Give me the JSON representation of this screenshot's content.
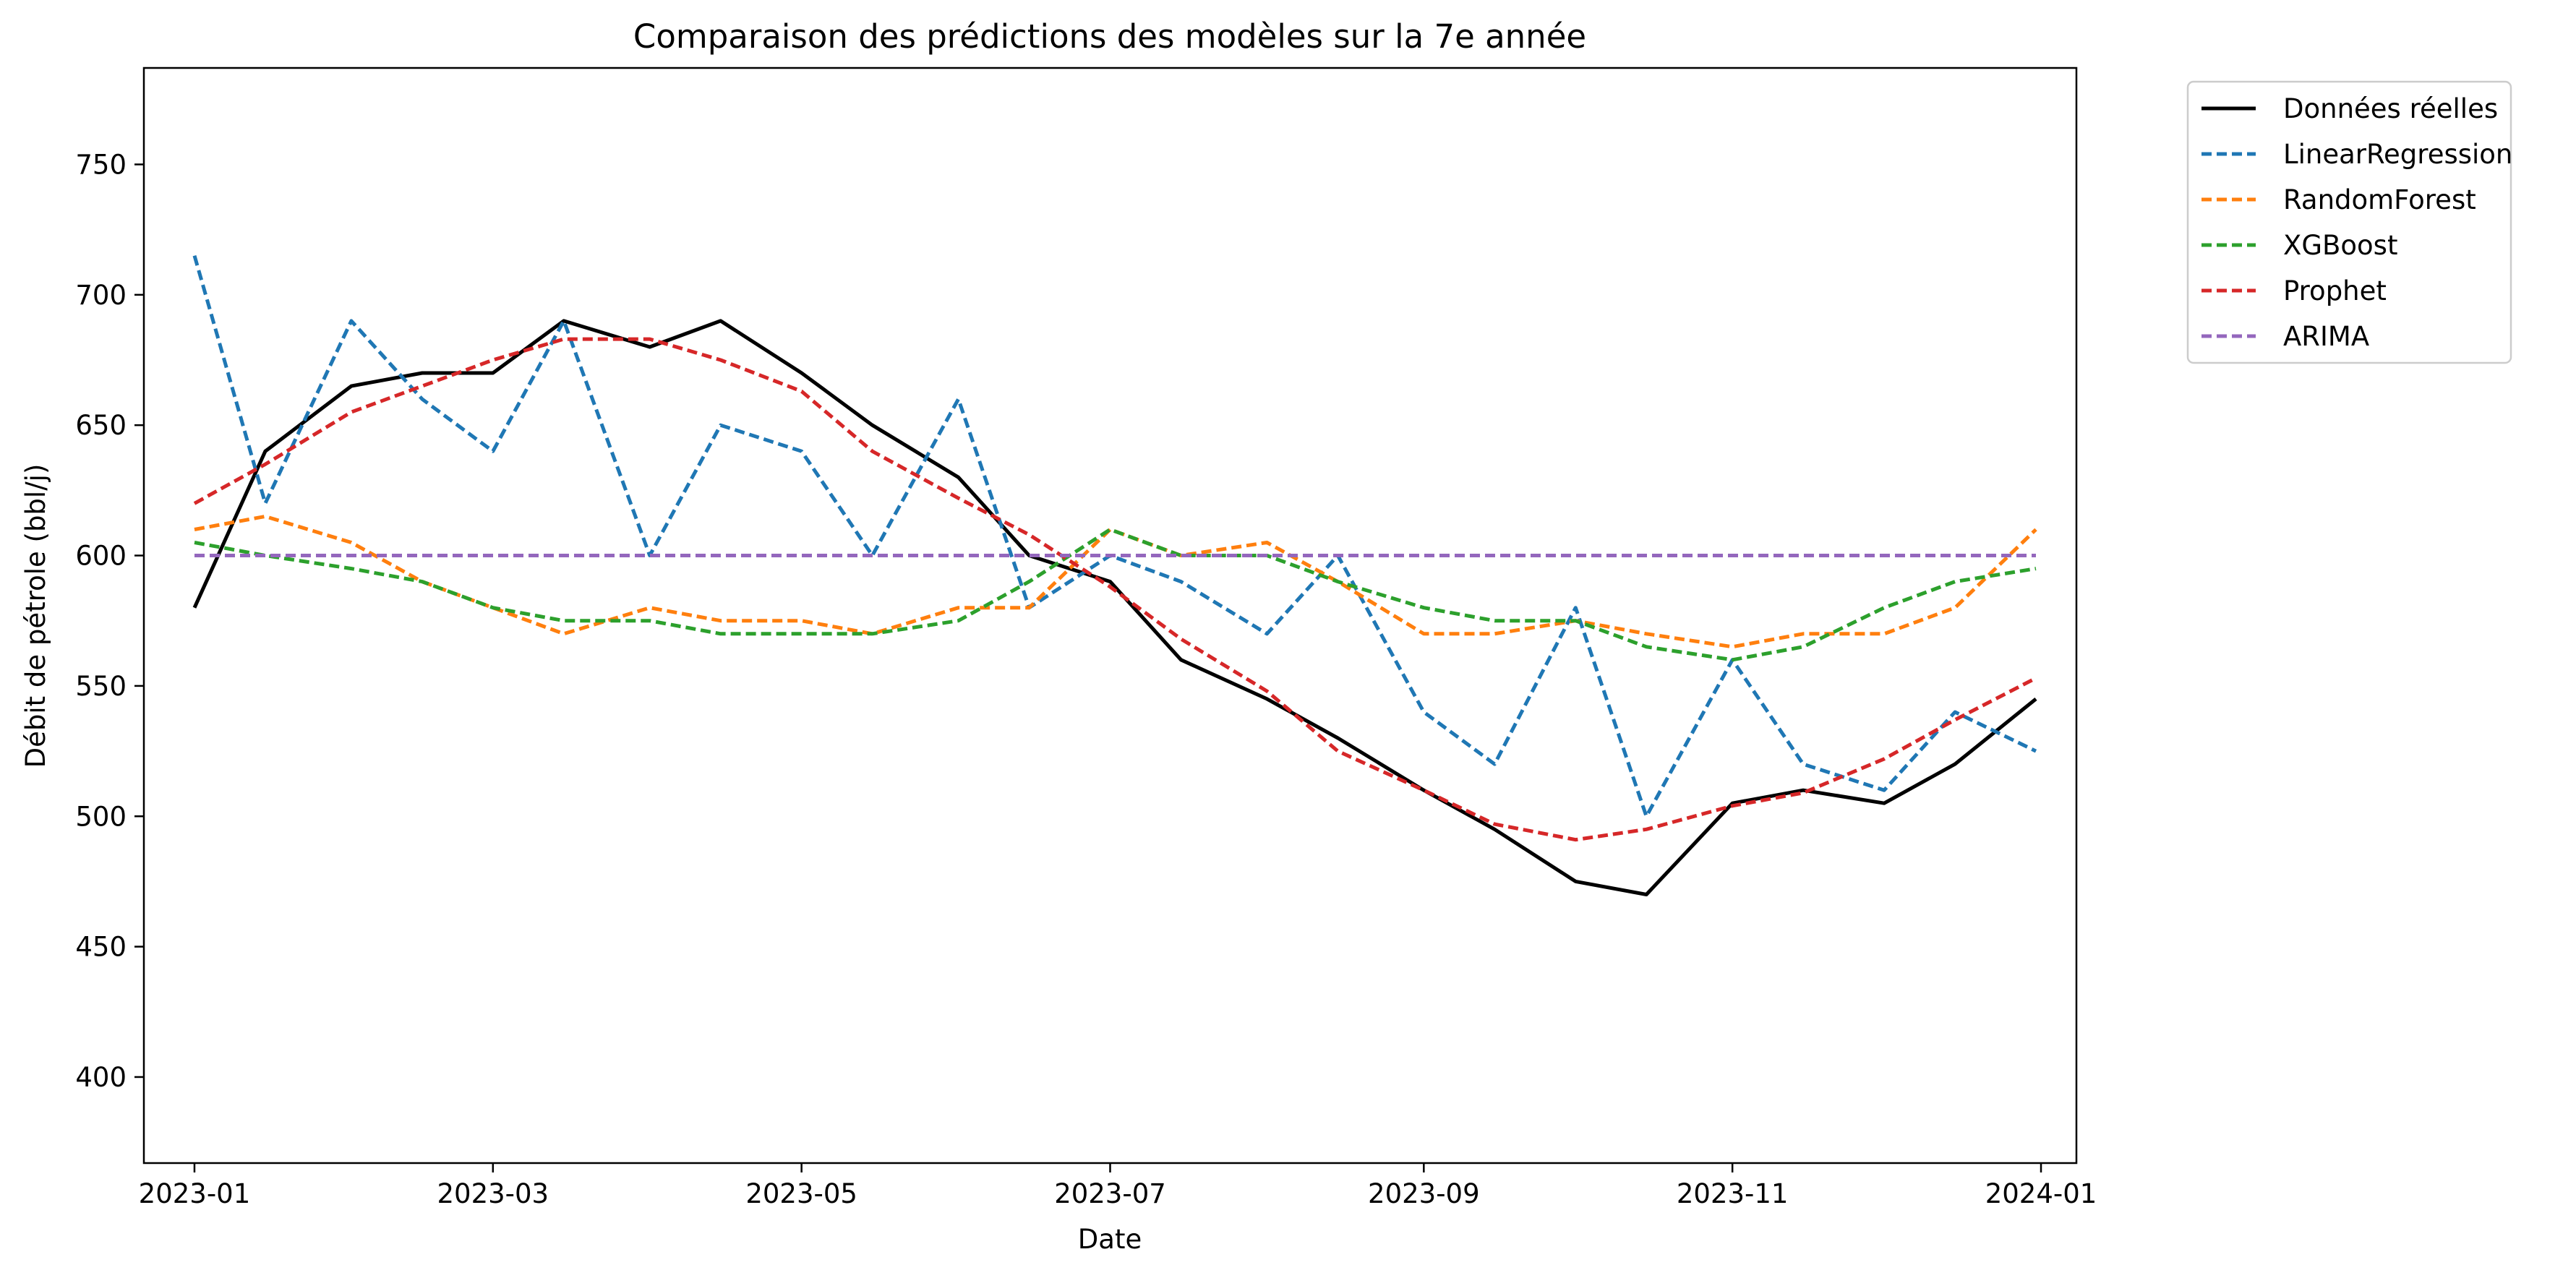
{
  "chart_data": {
    "type": "line",
    "title": "Comparaison des prédictions des modèles sur la 7e année",
    "xlabel": "Date",
    "ylabel": "Débit de pétrole (bbl/j)",
    "x_range": [
      "2022-12-22",
      "2024-01-08"
    ],
    "ylim": [
      367,
      787
    ],
    "x_ticks": [
      "2023-01",
      "2023-03",
      "2023-05",
      "2023-07",
      "2023-09",
      "2023-11",
      "2024-01"
    ],
    "y_ticks": [
      400,
      450,
      500,
      550,
      600,
      650,
      700,
      750
    ],
    "grid": false,
    "legend_position": "outside-top-right",
    "x": [
      "2023-01-01",
      "2023-01-15",
      "2023-02-01",
      "2023-02-15",
      "2023-03-01",
      "2023-03-15",
      "2023-04-01",
      "2023-04-15",
      "2023-05-01",
      "2023-05-15",
      "2023-06-01",
      "2023-06-15",
      "2023-07-01",
      "2023-07-15",
      "2023-08-01",
      "2023-08-15",
      "2023-09-01",
      "2023-09-15",
      "2023-10-01",
      "2023-10-15",
      "2023-11-01",
      "2023-11-15",
      "2023-12-01",
      "2023-12-15",
      "2023-12-31"
    ],
    "series": [
      {
        "name": "Données réelles",
        "color": "#000000",
        "dash": "solid",
        "values": [
          580,
          640,
          665,
          670,
          670,
          690,
          680,
          690,
          670,
          650,
          630,
          600,
          590,
          560,
          545,
          530,
          510,
          495,
          475,
          470,
          505,
          510,
          505,
          520,
          545
        ]
      },
      {
        "name": "LinearRegression",
        "color": "#1f77b4",
        "dash": "dashed",
        "values": [
          715,
          620,
          690,
          660,
          640,
          690,
          600,
          650,
          640,
          600,
          660,
          580,
          600,
          590,
          570,
          600,
          540,
          520,
          580,
          500,
          560,
          520,
          510,
          540,
          525
        ]
      },
      {
        "name": "RandomForest",
        "color": "#ff7f0e",
        "dash": "dashed",
        "values": [
          610,
          615,
          605,
          590,
          580,
          570,
          580,
          575,
          575,
          570,
          580,
          580,
          610,
          600,
          605,
          590,
          570,
          570,
          575,
          570,
          565,
          570,
          570,
          580,
          610
        ]
      },
      {
        "name": "XGBoost",
        "color": "#2ca02c",
        "dash": "dashed",
        "values": [
          605,
          600,
          595,
          590,
          580,
          575,
          575,
          570,
          570,
          570,
          575,
          590,
          610,
          600,
          600,
          590,
          580,
          575,
          575,
          565,
          560,
          565,
          580,
          590,
          595
        ]
      },
      {
        "name": "Prophet",
        "color": "#d62728",
        "dash": "dashed",
        "values": [
          620,
          635,
          655,
          665,
          675,
          683,
          683,
          675,
          663,
          640,
          622,
          608,
          588,
          568,
          548,
          525,
          510,
          497,
          491,
          495,
          504,
          509,
          522,
          537,
          553
        ]
      },
      {
        "name": "ARIMA",
        "color": "#9467bd",
        "dash": "dashed",
        "values": [
          600,
          600,
          600,
          600,
          600,
          600,
          600,
          600,
          600,
          600,
          600,
          600,
          600,
          600,
          600,
          600,
          600,
          600,
          600,
          600,
          600,
          600,
          600,
          600,
          600
        ]
      }
    ]
  }
}
